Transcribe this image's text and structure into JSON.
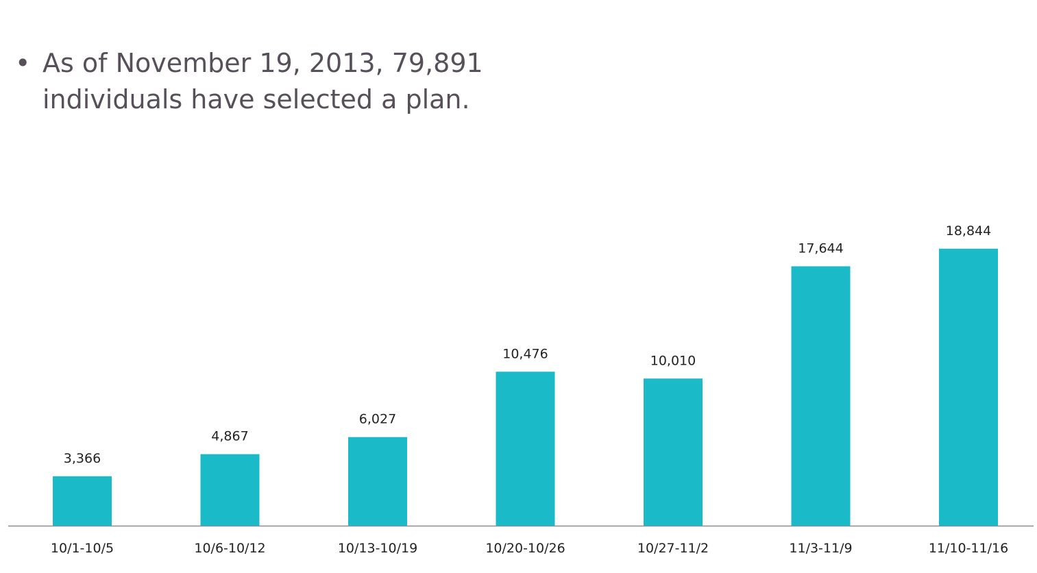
{
  "bullet": {
    "marker": "•",
    "text": "As of November 19, 2013, 79,891 individuals have selected a plan."
  },
  "colors": {
    "bar": "#1bbac9",
    "axis": "#8c8c8c",
    "text": "#57505a"
  },
  "chart_data": {
    "type": "bar",
    "title": "",
    "xlabel": "",
    "ylabel": "",
    "categories": [
      "10/1-10/5",
      "10/6-10/12",
      "10/13-10/19",
      "10/20-10/26",
      "10/27-11/2",
      "11/3-11/9",
      "11/10-11/16"
    ],
    "values": [
      3366,
      4867,
      6027,
      10476,
      10010,
      17644,
      18844
    ],
    "data_labels": [
      "3,366",
      "4,867",
      "6,027",
      "10,476",
      "10,010",
      "17,644",
      "18,844"
    ],
    "ylim": [
      0,
      19500
    ],
    "grid": false,
    "legend": "none"
  }
}
